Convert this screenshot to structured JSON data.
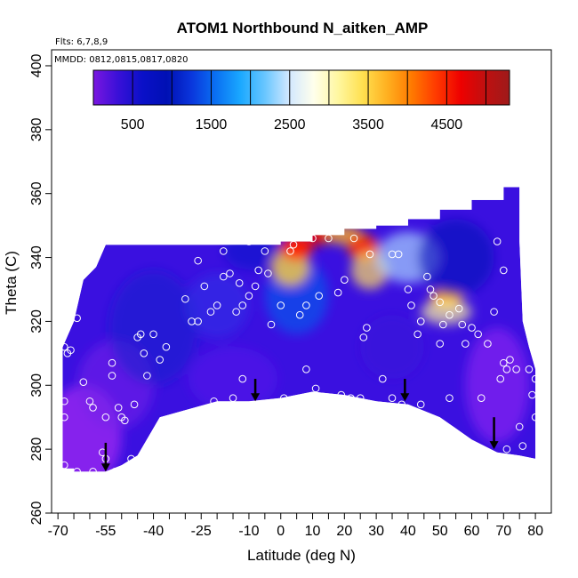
{
  "chart_data": {
    "type": "heatmap",
    "title": "ATOM1 Northbound N_aitken_AMP",
    "subtitle_flights": "Flts: 6,7,8,9",
    "subtitle_dates": "MMDD: 0812,0815,0817,0820",
    "xlabel": "Latitude (deg N)",
    "ylabel": "Theta (C)",
    "xlim": [
      -72,
      85
    ],
    "ylim": [
      260,
      405
    ],
    "x_ticks": [
      -70,
      -55,
      -40,
      -25,
      -10,
      0,
      10,
      20,
      30,
      40,
      50,
      60,
      70,
      80
    ],
    "x_tick_labels": [
      "-70",
      "-55",
      "-40",
      "-25",
      "-10",
      "0",
      "10",
      "20",
      "30",
      "40",
      "50",
      "60",
      "70",
      "80"
    ],
    "x_minor_ticks": [
      -65,
      -60,
      -50,
      -45,
      -35,
      -30,
      -20,
      -15,
      -5,
      5,
      15,
      25,
      35,
      45,
      55,
      65,
      75
    ],
    "y_ticks": [
      260,
      280,
      300,
      320,
      340,
      360,
      380,
      400
    ],
    "y_tick_labels": [
      "260",
      "280",
      "300",
      "320",
      "340",
      "360",
      "380",
      "400"
    ],
    "colorbar": {
      "min": 0,
      "max": 5300,
      "ticks": [
        500,
        1500,
        2500,
        3500,
        4500
      ],
      "tick_labels": [
        "500",
        "1500",
        "2500",
        "3500",
        "4500"
      ],
      "colors": [
        "#7a16e0",
        "#3a10d8",
        "#0a10c8",
        "#0010b4",
        "#0a36dc",
        "#0a70f2",
        "#1aa8ff",
        "#68c6ff",
        "#d2e8ff",
        "#ffffec",
        "#fff7a0",
        "#ffe050",
        "#ffb020",
        "#ff7a00",
        "#ff3a00",
        "#ee0000",
        "#c01010",
        "#9e1a1a"
      ]
    },
    "domain_outline": [
      [
        -68.5,
        274
      ],
      [
        -65,
        274
      ],
      [
        -65,
        273
      ],
      [
        -55,
        273
      ],
      [
        -50,
        275
      ],
      [
        -45,
        278
      ],
      [
        -38,
        290
      ],
      [
        -20,
        295
      ],
      [
        -10,
        295
      ],
      [
        0,
        296
      ],
      [
        10,
        298
      ],
      [
        20,
        297
      ],
      [
        30,
        295
      ],
      [
        40,
        294
      ],
      [
        50,
        290
      ],
      [
        60,
        283
      ],
      [
        68,
        279
      ],
      [
        75,
        278
      ],
      [
        80,
        277
      ],
      [
        80,
        305
      ],
      [
        78,
        312
      ],
      [
        76,
        320
      ],
      [
        75,
        345
      ],
      [
        75,
        362
      ],
      [
        70,
        362
      ],
      [
        70,
        358
      ],
      [
        60,
        358
      ],
      [
        60,
        355
      ],
      [
        50,
        355
      ],
      [
        50,
        352
      ],
      [
        40,
        352
      ],
      [
        40,
        350
      ],
      [
        30,
        350
      ],
      [
        30,
        349
      ],
      [
        20,
        349
      ],
      [
        20,
        347
      ],
      [
        10,
        347
      ],
      [
        10,
        345
      ],
      [
        0,
        345
      ],
      [
        0,
        344
      ],
      [
        -40,
        344
      ],
      [
        -55,
        344
      ],
      [
        -58,
        337
      ],
      [
        -62,
        333
      ],
      [
        -65,
        320
      ],
      [
        -68.5,
        312
      ]
    ],
    "base": "#3a10e0",
    "blobs": [
      {
        "lat": -62,
        "theta": 284,
        "rx": 12,
        "ry": 16,
        "color": "#8a24ee",
        "strength": 0.95
      },
      {
        "lat": -52,
        "theta": 300,
        "rx": 12,
        "ry": 14,
        "color": "#7420ea",
        "strength": 0.6
      },
      {
        "lat": -40,
        "theta": 318,
        "rx": 14,
        "ry": 18,
        "color": "#1822cc",
        "strength": 0.55
      },
      {
        "lat": -20,
        "theta": 325,
        "rx": 10,
        "ry": 10,
        "color": "#2a3ce8",
        "strength": 0.45
      },
      {
        "lat": -15,
        "theta": 302,
        "rx": 14,
        "ry": 10,
        "color": "#5a1cee",
        "strength": 0.5
      },
      {
        "lat": -8,
        "theta": 342,
        "rx": 10,
        "ry": 6,
        "color": "#0a12c8",
        "strength": 0.5
      },
      {
        "lat": 5,
        "theta": 328,
        "rx": 10,
        "ry": 12,
        "color": "#0a60ee",
        "strength": 0.6
      },
      {
        "lat": 3,
        "theta": 337,
        "rx": 6,
        "ry": 6,
        "color": "#ffd040",
        "strength": 0.8
      },
      {
        "lat": 5,
        "theta": 343,
        "rx": 5,
        "ry": 4,
        "color": "#ff2000",
        "strength": 0.95
      },
      {
        "lat": 12,
        "theta": 347,
        "rx": 4,
        "ry": 3,
        "color": "#ee0000",
        "strength": 0.9
      },
      {
        "lat": 20,
        "theta": 347,
        "rx": 6,
        "ry": 3,
        "color": "#ffb020",
        "strength": 0.8
      },
      {
        "lat": 26,
        "theta": 343,
        "rx": 5,
        "ry": 4,
        "color": "#ff3000",
        "strength": 0.9
      },
      {
        "lat": 28,
        "theta": 336,
        "rx": 6,
        "ry": 6,
        "color": "#ffe060",
        "strength": 0.7
      },
      {
        "lat": 40,
        "theta": 340,
        "rx": 10,
        "ry": 8,
        "color": "#a8d4ff",
        "strength": 0.7
      },
      {
        "lat": 52,
        "theta": 327,
        "rx": 5,
        "ry": 3,
        "color": "#ffa000",
        "strength": 0.95
      },
      {
        "lat": 52,
        "theta": 323,
        "rx": 8,
        "ry": 4,
        "color": "#fff6a0",
        "strength": 0.7
      },
      {
        "lat": 55,
        "theta": 340,
        "rx": 12,
        "ry": 12,
        "color": "#0a10b8",
        "strength": 0.6
      },
      {
        "lat": 68,
        "theta": 300,
        "rx": 10,
        "ry": 18,
        "color": "#7a22ee",
        "strength": 0.85
      },
      {
        "lat": 35,
        "theta": 312,
        "rx": 10,
        "ry": 10,
        "color": "#3a14d8",
        "strength": 0.4
      }
    ],
    "observations": [
      [
        -68,
        312
      ],
      [
        -67,
        310
      ],
      [
        -66,
        311
      ],
      [
        -64,
        321
      ],
      [
        -68,
        290
      ],
      [
        -68,
        295
      ],
      [
        -68,
        275
      ],
      [
        -62,
        301
      ],
      [
        -60,
        295
      ],
      [
        -59,
        293
      ],
      [
        -55,
        290
      ],
      [
        -53,
        303
      ],
      [
        -53,
        307
      ],
      [
        -51,
        293
      ],
      [
        -50,
        290
      ],
      [
        -49,
        289
      ],
      [
        -47,
        277
      ],
      [
        -46,
        294
      ],
      [
        -45,
        315
      ],
      [
        -44,
        316
      ],
      [
        -43,
        310
      ],
      [
        -42,
        303
      ],
      [
        -40,
        316
      ],
      [
        -38,
        308
      ],
      [
        -36,
        312
      ],
      [
        -35,
        288
      ],
      [
        -30,
        327
      ],
      [
        -30,
        291
      ],
      [
        -28,
        320
      ],
      [
        -26,
        320
      ],
      [
        -26,
        339
      ],
      [
        -24,
        331
      ],
      [
        -22,
        323
      ],
      [
        -21,
        295
      ],
      [
        -20,
        325
      ],
      [
        -18,
        342
      ],
      [
        -18,
        334
      ],
      [
        -16,
        335
      ],
      [
        -15,
        296
      ],
      [
        -14,
        323
      ],
      [
        -13,
        332
      ],
      [
        -12,
        325
      ],
      [
        -10,
        345
      ],
      [
        -10,
        328
      ],
      [
        -8,
        331
      ],
      [
        -7,
        336
      ],
      [
        -5,
        342
      ],
      [
        -4,
        335
      ],
      [
        -3,
        319
      ],
      [
        0,
        325
      ],
      [
        1,
        296
      ],
      [
        3,
        342
      ],
      [
        4,
        344
      ],
      [
        6,
        322
      ],
      [
        8,
        325
      ],
      [
        10,
        348
      ],
      [
        10,
        346
      ],
      [
        11,
        299
      ],
      [
        12,
        328
      ],
      [
        15,
        346
      ],
      [
        18,
        329
      ],
      [
        19,
        297
      ],
      [
        20,
        333
      ],
      [
        23,
        346
      ],
      [
        25,
        296
      ],
      [
        26,
        315
      ],
      [
        27,
        318
      ],
      [
        28,
        341
      ],
      [
        32,
        302
      ],
      [
        35,
        341
      ],
      [
        35,
        296
      ],
      [
        37,
        341
      ],
      [
        38,
        294
      ],
      [
        40,
        330
      ],
      [
        41,
        325
      ],
      [
        43,
        316
      ],
      [
        44,
        320
      ],
      [
        46,
        334
      ],
      [
        47,
        330
      ],
      [
        48,
        328
      ],
      [
        50,
        326
      ],
      [
        50,
        313
      ],
      [
        51,
        319
      ],
      [
        53,
        322
      ],
      [
        53,
        296
      ],
      [
        56,
        324
      ],
      [
        57,
        319
      ],
      [
        58,
        313
      ],
      [
        60,
        318
      ],
      [
        62,
        316
      ],
      [
        63,
        296
      ],
      [
        65,
        313
      ],
      [
        67,
        323
      ],
      [
        68,
        345
      ],
      [
        69,
        302
      ],
      [
        70,
        336
      ],
      [
        70,
        307
      ],
      [
        71,
        305
      ],
      [
        72,
        308
      ],
      [
        74,
        305
      ],
      [
        75,
        287
      ],
      [
        75,
        273
      ],
      [
        76,
        281
      ],
      [
        77,
        334
      ],
      [
        78,
        305
      ],
      [
        79,
        297
      ],
      [
        80,
        302
      ],
      [
        80,
        290
      ],
      [
        80,
        275
      ],
      [
        -69,
        273
      ],
      [
        -52,
        273
      ],
      [
        -59,
        273
      ],
      [
        -64,
        273
      ],
      [
        -55,
        277
      ],
      [
        -56,
        279
      ],
      [
        22,
        296
      ],
      [
        44,
        294
      ],
      [
        60,
        281
      ],
      [
        71,
        280
      ],
      [
        8,
        305
      ],
      [
        -12,
        302
      ]
    ],
    "flight_arrows": [
      [
        -55,
        282,
        273
      ],
      [
        -8,
        302,
        295
      ],
      [
        39,
        302,
        295
      ],
      [
        67,
        290,
        280
      ]
    ]
  }
}
